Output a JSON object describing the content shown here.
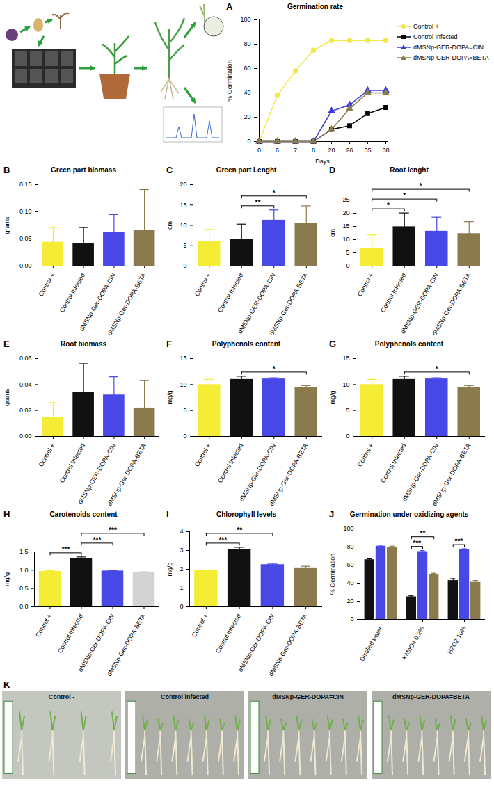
{
  "chart_data": [
    {
      "type": "line",
      "panel": "A",
      "title": "Germination rate",
      "xlabel": "Days",
      "ylabel": "% Germination",
      "categories": [
        0,
        6,
        7,
        8,
        20,
        26,
        35,
        38
      ],
      "series": [
        {
          "name": "Control +",
          "color": "#f2e84a",
          "marker": "circle",
          "line_style": "solid",
          "values": [
            0,
            38,
            58,
            75,
            83,
            83,
            83,
            83
          ]
        },
        {
          "name": "Control Infected",
          "color": "#000000",
          "marker": "square",
          "line_style": "solid",
          "values": [
            0,
            0,
            0,
            0,
            10,
            13,
            23,
            28
          ]
        },
        {
          "name": "dMSNp-GER-DOPA=CIN",
          "color": "#3b3bd6",
          "marker": "triangle",
          "line_style": "solid",
          "values": [
            0,
            0,
            0,
            0,
            25,
            30,
            42,
            42
          ]
        },
        {
          "name": "dMSNp-GER-DOPA=BETA",
          "color": "#8b7d4b",
          "marker": "triangle",
          "line_style": "solid",
          "values": [
            0,
            0,
            0,
            0,
            10,
            27,
            40,
            40
          ]
        }
      ],
      "ylim": [
        0,
        100
      ],
      "yticks": [
        0,
        20,
        40,
        60,
        80,
        100
      ],
      "legend": "right"
    },
    {
      "type": "bar",
      "panel": "B",
      "title": "Green part biomass",
      "ylabel": "grams",
      "categories": [
        "Control +",
        "Control Infected",
        "dMSNp-Ger-DOPA-CIN",
        "dMSNp-Ger-DOPA-BETA"
      ],
      "values": [
        0.044,
        0.041,
        0.062,
        0.066
      ],
      "errors": [
        0.027,
        0.03,
        0.033,
        0.075
      ],
      "colors": [
        "#f5ec35",
        "#111111",
        "#4848e6",
        "#8a7a4c"
      ],
      "ylim": [
        0,
        0.15
      ],
      "yticks": [
        {
          "value": 0,
          "label": "0.00"
        },
        0.05,
        {
          "value": 0.1,
          "label": "0.10"
        },
        0.15
      ],
      "significance": []
    },
    {
      "type": "bar",
      "panel": "C",
      "title": "Green part Lenght",
      "ylabel": "cm",
      "categories": [
        "Control +",
        "Control Infected",
        "dMSNp-GER-DOPA-CIN",
        "dMSNp-Ger-DOPA-BETA"
      ],
      "values": [
        6.0,
        6.6,
        11.3,
        10.6
      ],
      "errors": [
        3.0,
        3.7,
        2.5,
        4.2
      ],
      "colors": [
        "#f5ec35",
        "#111111",
        "#4848e6",
        "#8a7a4c"
      ],
      "ylim": [
        0,
        20
      ],
      "yticks": [
        0,
        5,
        10,
        15,
        20
      ],
      "significance": [
        {
          "from": "Control Infected",
          "to": "dMSNp-GER-DOPA-CIN",
          "text": "**"
        },
        {
          "from": "Control Infected",
          "to": "dMSNp-Ger-DOPA-BETA",
          "text": "*"
        }
      ]
    },
    {
      "type": "bar",
      "panel": "D",
      "title": "Root lenght",
      "ylabel": "cm",
      "categories": [
        "Control +",
        "Control Infected",
        "dMSNp-GER-DOPA-CIN",
        "dMSNp-Ger-DOPA-BETA"
      ],
      "values": [
        6.8,
        14.9,
        13.2,
        12.3
      ],
      "errors": [
        5.0,
        5.2,
        5.3,
        4.5
      ],
      "colors": [
        "#f5ec35",
        "#111111",
        "#4848e6",
        "#8a7a4c"
      ],
      "ylim": [
        0,
        25
      ],
      "yticks": [
        0,
        5,
        10,
        15,
        20,
        25
      ],
      "significance": [
        {
          "from": "Control +",
          "to": "Control Infected",
          "text": "*"
        },
        {
          "from": "Control +",
          "to": "dMSNp-GER-DOPA-CIN",
          "text": "*"
        },
        {
          "from": "Control +",
          "to": "dMSNp-Ger-DOPA-BETA",
          "text": "*"
        }
      ]
    },
    {
      "type": "bar",
      "panel": "E",
      "title": "Root biomass",
      "ylabel": "grams",
      "categories": [
        "Control +",
        "Control Infected",
        "dMSNp-GER-DOPA-CIN",
        "dMSNp-Ger-DOPA-BETA"
      ],
      "values": [
        0.015,
        0.034,
        0.032,
        0.022
      ],
      "errors": [
        0.011,
        0.022,
        0.014,
        0.021
      ],
      "colors": [
        "#f5ec35",
        "#111111",
        "#4848e6",
        "#8a7a4c"
      ],
      "ylim": [
        0,
        0.06
      ],
      "yticks": [
        {
          "value": 0,
          "label": "0.00"
        },
        0.02,
        0.04,
        0.06
      ],
      "significance": []
    },
    {
      "type": "bar",
      "panel": "F",
      "title": "Polyphenols content",
      "ylabel": "mg/g",
      "categories": [
        "Control +",
        "Control Infected",
        "dMSNp-Ger-DOPA-CIN",
        "dMSNp-Ger-DOPA-BETA"
      ],
      "values": [
        10.0,
        11.0,
        11.1,
        9.5
      ],
      "errors": [
        1.0,
        0.6,
        0.2,
        0.3
      ],
      "colors": [
        "#f5ec35",
        "#111111",
        "#4848e6",
        "#8a7a4c"
      ],
      "ylim": [
        0,
        15
      ],
      "yticks": [
        0,
        5,
        10,
        15
      ],
      "significance": [
        {
          "from": "Control Infected",
          "to": "dMSNp-Ger-DOPA-BETA",
          "text": "*"
        }
      ]
    },
    {
      "type": "bar",
      "panel": "G",
      "title": "Polyphenols content",
      "ylabel": "mg/g",
      "categories": [
        "Control +",
        "Control Infected",
        "dMSNp-Ger-DOPA-CIN",
        "dMSNp-Ger-DOPA-BETA"
      ],
      "values": [
        10.0,
        11.0,
        11.1,
        9.5
      ],
      "errors": [
        1.0,
        0.6,
        0.2,
        0.3
      ],
      "colors": [
        "#f5ec35",
        "#111111",
        "#4848e6",
        "#8a7a4c"
      ],
      "ylim": [
        0,
        15
      ],
      "yticks": [
        0,
        5,
        10,
        15
      ],
      "significance": [
        {
          "from": "Control Infected",
          "to": "dMSNp-Ger-DOPA-BETA",
          "text": "*"
        }
      ]
    },
    {
      "type": "bar",
      "panel": "H",
      "title": "Carotenoids content",
      "ylabel": "mg/g",
      "categories": [
        "Control +",
        "Control Infected",
        "dMSNp-Ger-DOPA-CIN",
        "dMSNp-Ger-DOPA-BETA"
      ],
      "values": [
        0.97,
        1.32,
        0.98,
        0.95
      ],
      "errors": [
        0.02,
        0.04,
        0.01,
        0.01
      ],
      "colors": [
        "#f5ec35",
        "#111111",
        "#4848e6",
        "#d3d3d3"
      ],
      "ylim": [
        0,
        1.5
      ],
      "yticks": [
        {
          "value": 0,
          "label": "0.0"
        },
        0.5,
        {
          "value": 1,
          "label": "1.0"
        },
        1.5
      ],
      "significance": [
        {
          "from": "Control +",
          "to": "Control Infected",
          "text": "***"
        },
        {
          "from": "Control Infected",
          "to": "dMSNp-Ger-DOPA-CIN",
          "text": "***"
        },
        {
          "from": "Control Infected",
          "to": "dMSNp-Ger-DOPA-BETA",
          "text": "***"
        }
      ]
    },
    {
      "type": "bar",
      "panel": "I",
      "title": "Chlorophyll levels",
      "ylabel": "mg/g",
      "categories": [
        "Control +",
        "Control Infected",
        "dMSNp-Ger-DOPA-CIN",
        "dMSNp-Ger-DOPA-BETA"
      ],
      "values": [
        1.93,
        3.05,
        2.25,
        2.08
      ],
      "errors": [
        0.03,
        0.12,
        0.03,
        0.08
      ],
      "colors": [
        "#f5ec35",
        "#111111",
        "#4848e6",
        "#8a7a4c"
      ],
      "ylim": [
        0,
        4
      ],
      "yticks": [
        0,
        1,
        2,
        3,
        4
      ],
      "significance": [
        {
          "from": "Control +",
          "to": "Control Infected",
          "text": "***"
        },
        {
          "from": "Control +",
          "to": "dMSNp-Ger-DOPA-CIN",
          "text": "**"
        }
      ]
    },
    {
      "type": "bar",
      "panel": "J",
      "title": "Germination under oxidizing agents",
      "ylabel": "% Germination",
      "categories": [
        "Distilled water",
        "KMnO4 0.2%",
        "H2O2 10%"
      ],
      "series": [
        {
          "color": "#111111",
          "values": [
            66,
            25,
            43
          ],
          "errors": [
            1,
            1,
            2
          ]
        },
        {
          "color": "#4848e6",
          "values": [
            81,
            75,
            77
          ],
          "errors": [
            1,
            1,
            1
          ]
        },
        {
          "color": "#8a7a4c",
          "values": [
            80,
            50,
            41
          ],
          "errors": [
            1,
            1,
            2
          ]
        }
      ],
      "ylim": [
        0,
        100
      ],
      "yticks": [
        0,
        20,
        40,
        60,
        80,
        100
      ],
      "significance": [
        {
          "category": "KMnO4 0.2%",
          "from": 0,
          "to": 1,
          "text": "***"
        },
        {
          "category": "KMnO4 0.2%",
          "from": 0,
          "to": 2,
          "text": "**"
        },
        {
          "category": "H2O2 10%",
          "from": 0,
          "to": 1,
          "text": "***"
        }
      ]
    }
  ],
  "photo_panel": {
    "panel": "K",
    "photos": [
      "Control -",
      "Control infected",
      "dMSNp-GER-DOPA=CIN",
      "dMSNp-GER-DOPA=BETA"
    ]
  }
}
